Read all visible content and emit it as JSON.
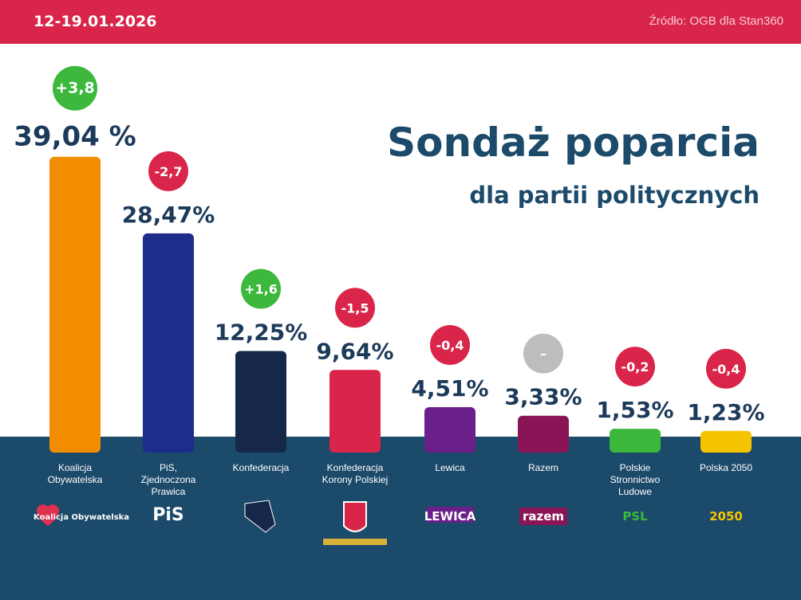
{
  "header": {
    "date": "12-19.01.2026",
    "source": "Źródło: OGB dla Stan360"
  },
  "title": "Sondaż poparcia",
  "subtitle": "dla partii politycznych",
  "chart_data": {
    "type": "bar",
    "categories": [
      "Koalicja Obywatelska",
      "PiS, Zjednoczona Prawica",
      "Konfederacja",
      "Konfederacja Korony Polskiej",
      "Lewica",
      "Razem",
      "Polskie Stronnictwo Ludowe",
      "Polska 2050"
    ],
    "label_lines": [
      [
        "Koalicja",
        "Obywatelska"
      ],
      [
        "PiS,",
        "Zjednoczona",
        "Prawica"
      ],
      [
        "Konfederacja"
      ],
      [
        "Konfederacja",
        "Korony Polskiej"
      ],
      [
        "Lewica"
      ],
      [
        "Razem"
      ],
      [
        "Polskie",
        "Stronnictwo",
        "Ludowe"
      ],
      [
        "Polska 2050"
      ]
    ],
    "values": [
      39.04,
      28.47,
      12.25,
      9.64,
      4.51,
      3.33,
      1.53,
      1.23
    ],
    "value_labels": [
      "39,04 %",
      "28,47%",
      "12,25%",
      "9,64%",
      "4,51%",
      "3,33%",
      "1,53%",
      "1,23%"
    ],
    "changes": [
      "+3,8",
      "-2,7",
      "+1,6",
      "-1,5",
      "-0,4",
      "–",
      "-0,2",
      "-0,4"
    ],
    "bar_colors": [
      "#f28c00",
      "#1f2d8a",
      "#16284a",
      "#d9254a",
      "#6a1f8a",
      "#8a1556",
      "#3cb83c",
      "#f5c400"
    ],
    "change_colors": {
      "up": "#3cb83c",
      "down": "#d9254a",
      "none": "#bdbdbd"
    },
    "logos": [
      "Koalicja Obywatelska",
      "PiS",
      "",
      "",
      "LEWICA",
      "razem",
      "PSL",
      "2050"
    ]
  }
}
